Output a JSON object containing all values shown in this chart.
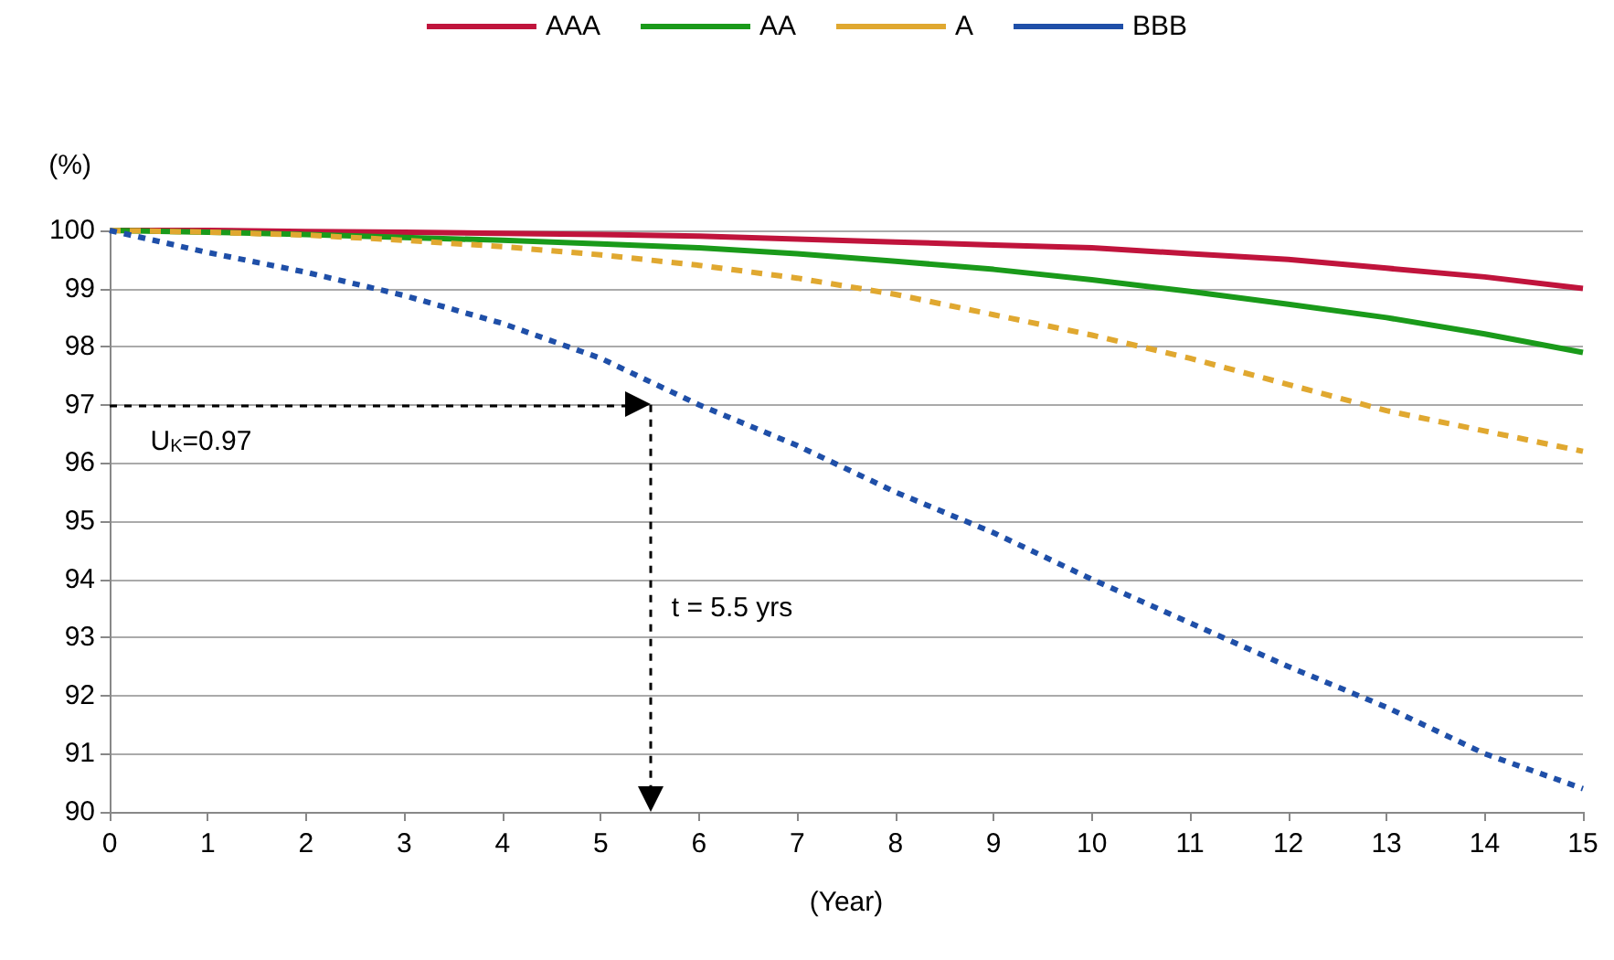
{
  "chart_data": {
    "type": "line",
    "xlabel": "(Year)",
    "ylabel": "(%)",
    "xlim": [
      0,
      15
    ],
    "ylim": [
      90,
      100
    ],
    "xticks": [
      0,
      1,
      2,
      3,
      4,
      5,
      6,
      7,
      8,
      9,
      10,
      11,
      12,
      13,
      14,
      15
    ],
    "yticks": [
      90,
      91,
      92,
      93,
      94,
      95,
      96,
      97,
      98,
      99,
      100
    ],
    "x": [
      0,
      1,
      2,
      3,
      4,
      5,
      6,
      7,
      8,
      9,
      10,
      11,
      12,
      13,
      14,
      15
    ],
    "series": [
      {
        "name": "AAA",
        "color": "#c0143c",
        "line_style": "solid",
        "values": [
          100,
          100,
          99.98,
          99.97,
          99.95,
          99.93,
          99.9,
          99.85,
          99.8,
          99.75,
          99.7,
          99.6,
          99.5,
          99.35,
          99.2,
          99.0
        ]
      },
      {
        "name": "AA",
        "color": "#1a9a1a",
        "line_style": "solid",
        "values": [
          100,
          99.97,
          99.93,
          99.88,
          99.83,
          99.77,
          99.7,
          99.6,
          99.47,
          99.33,
          99.15,
          98.95,
          98.73,
          98.5,
          98.22,
          97.9
        ]
      },
      {
        "name": "A",
        "color": "#e0a830",
        "line_style": "dashed",
        "values": [
          100,
          99.97,
          99.92,
          99.83,
          99.72,
          99.58,
          99.4,
          99.18,
          98.9,
          98.55,
          98.2,
          97.8,
          97.35,
          96.9,
          96.55,
          96.2
        ]
      },
      {
        "name": "BBB",
        "color": "#1f4fa8",
        "line_style": "dotted",
        "values": [
          100,
          99.62,
          99.28,
          98.88,
          98.4,
          97.8,
          97.0,
          96.3,
          95.5,
          94.8,
          94.0,
          93.25,
          92.5,
          91.8,
          91.0,
          90.4
        ]
      }
    ],
    "ref_lines": [
      {
        "axis": "y",
        "value": 97,
        "color": "#000000",
        "line_style": "dotted"
      },
      {
        "axis": "x",
        "value": 5.5,
        "color": "#000000",
        "line_style": "dotted"
      }
    ],
    "annotations": [
      "U$_{K}$=0.97",
      "t = 5.5 yrs"
    ],
    "grid": "y",
    "legend": "top",
    "marker": "none"
  }
}
